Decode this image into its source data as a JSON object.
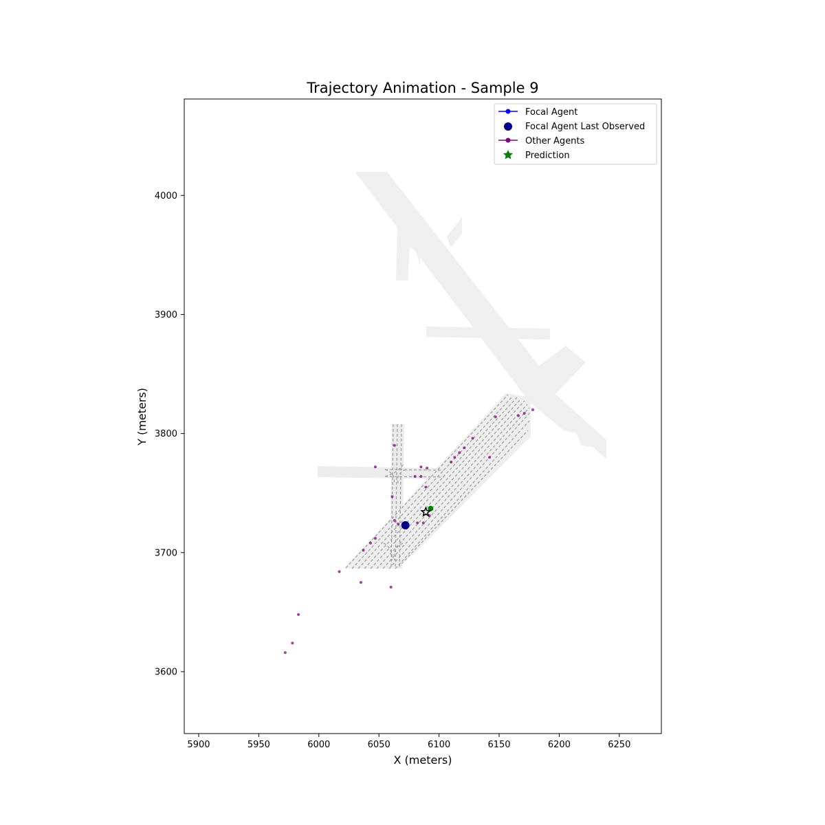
{
  "chart_data": {
    "type": "scatter",
    "title": "Trajectory Animation - Sample 9",
    "xlabel": "X (meters)",
    "ylabel": "Y (meters)",
    "xlim": [
      5888,
      6285
    ],
    "ylim": [
      3548,
      4081
    ],
    "xticks": [
      5900,
      5950,
      6000,
      6050,
      6100,
      6150,
      6200,
      6250
    ],
    "yticks": [
      3600,
      3700,
      3800,
      3900,
      4000
    ],
    "grid": false,
    "legend_position": "top-right",
    "legend": [
      {
        "label": "Focal Agent",
        "marker": "line-dot",
        "color": "#0000ff"
      },
      {
        "label": "Focal Agent Last Observed",
        "marker": "big-dot",
        "color": "#00008b"
      },
      {
        "label": "Other Agents",
        "marker": "line-dot",
        "color": "#800080"
      },
      {
        "label": "Prediction",
        "marker": "star",
        "color": "#008000"
      }
    ],
    "series": [
      {
        "name": "Focal Agent Last Observed",
        "color": "#00008b",
        "points": [
          {
            "x": 6072,
            "y": 3723
          }
        ]
      },
      {
        "name": "Prediction",
        "color": "#008000",
        "points": [
          {
            "x": 6093,
            "y": 3737
          },
          {
            "x": 6089,
            "y": 3734
          }
        ]
      },
      {
        "name": "Other Agents",
        "color": "#800080",
        "points": [
          {
            "x": 5972,
            "y": 3616
          },
          {
            "x": 5978,
            "y": 3624
          },
          {
            "x": 5983,
            "y": 3648
          },
          {
            "x": 6017,
            "y": 3684
          },
          {
            "x": 6035,
            "y": 3675
          },
          {
            "x": 6060,
            "y": 3671
          },
          {
            "x": 6037,
            "y": 3702
          },
          {
            "x": 6043,
            "y": 3708
          },
          {
            "x": 6047,
            "y": 3712
          },
          {
            "x": 6047,
            "y": 3772
          },
          {
            "x": 6063,
            "y": 3790
          },
          {
            "x": 6061,
            "y": 3747
          },
          {
            "x": 6063,
            "y": 3727
          },
          {
            "x": 6066,
            "y": 3724
          },
          {
            "x": 6080,
            "y": 3764
          },
          {
            "x": 6085,
            "y": 3764
          },
          {
            "x": 6085,
            "y": 3772
          },
          {
            "x": 6090,
            "y": 3771
          },
          {
            "x": 6089,
            "y": 3755
          },
          {
            "x": 6082,
            "y": 3725
          },
          {
            "x": 6087,
            "y": 3725
          },
          {
            "x": 6092,
            "y": 3731
          },
          {
            "x": 6110,
            "y": 3776
          },
          {
            "x": 6113,
            "y": 3780
          },
          {
            "x": 6117,
            "y": 3784
          },
          {
            "x": 6121,
            "y": 3788
          },
          {
            "x": 6128,
            "y": 3796
          },
          {
            "x": 6142,
            "y": 3780
          },
          {
            "x": 6147,
            "y": 3814
          },
          {
            "x": 6166,
            "y": 3815
          },
          {
            "x": 6171,
            "y": 3817
          },
          {
            "x": 6178,
            "y": 3820
          }
        ]
      }
    ]
  }
}
